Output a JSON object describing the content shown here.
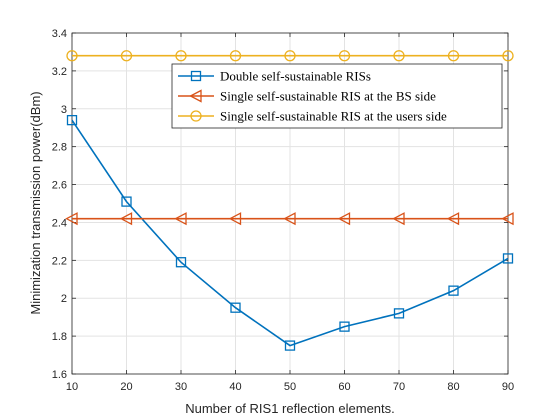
{
  "chart_data": {
    "type": "line",
    "xlabel": "Number of RIS1 reflection elements.",
    "ylabel": "Minimization transmission power(dBm)",
    "x": [
      10,
      20,
      30,
      40,
      50,
      60,
      70,
      80,
      90
    ],
    "xlim": [
      10,
      90
    ],
    "ylim": [
      1.6,
      3.4
    ],
    "xticks": [
      "10",
      "20",
      "30",
      "40",
      "50",
      "60",
      "70",
      "80",
      "90"
    ],
    "yticks": [
      "1.6",
      "1.8",
      "2",
      "2.2",
      "2.4",
      "2.6",
      "2.8",
      "3",
      "3.2",
      "3.4"
    ],
    "grid": true,
    "legend_position": "top-right",
    "series": [
      {
        "name": "Double self-sustainable RISs",
        "marker": "square",
        "color": "#0072BD",
        "values": [
          2.94,
          2.51,
          2.19,
          1.95,
          1.75,
          1.85,
          1.92,
          2.04,
          2.21
        ]
      },
      {
        "name": "Single self-sustainable RIS at the BS side",
        "marker": "triangle-left",
        "color": "#D95319",
        "values": [
          2.42,
          2.42,
          2.42,
          2.42,
          2.42,
          2.42,
          2.42,
          2.42,
          2.42
        ]
      },
      {
        "name": "Single self-sustainable RIS at the users side",
        "marker": "circle",
        "color": "#EDB120",
        "values": [
          3.28,
          3.28,
          3.28,
          3.28,
          3.28,
          3.28,
          3.28,
          3.28,
          3.28
        ]
      }
    ]
  }
}
